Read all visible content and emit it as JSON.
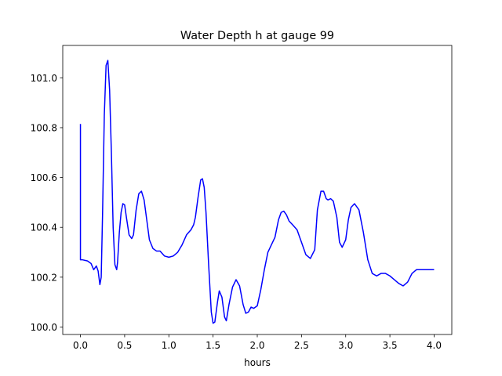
{
  "chart_data": {
    "type": "line",
    "title": "Water Depth h at gauge 99",
    "xlabel": "hours",
    "ylabel": "",
    "xlim": [
      -0.2,
      4.2
    ],
    "ylim": [
      99.97,
      101.13
    ],
    "xticks": [
      0.0,
      0.5,
      1.0,
      1.5,
      2.0,
      2.5,
      3.0,
      3.5,
      4.0
    ],
    "xtick_labels": [
      "0.0",
      "0.5",
      "1.0",
      "1.5",
      "2.0",
      "2.5",
      "3.0",
      "3.5",
      "4.0"
    ],
    "yticks": [
      100.0,
      100.2,
      100.4,
      100.6,
      100.8,
      101.0
    ],
    "ytick_labels": [
      "100.0",
      "100.2",
      "100.4",
      "100.6",
      "100.8",
      "101.0"
    ],
    "grid": false,
    "series": [
      {
        "color": "#0000ff",
        "x": [
          0.0,
          0.0,
          0.02,
          0.08,
          0.12,
          0.15,
          0.18,
          0.2,
          0.22,
          0.235,
          0.25,
          0.27,
          0.29,
          0.31,
          0.33,
          0.35,
          0.37,
          0.39,
          0.41,
          0.42,
          0.44,
          0.46,
          0.48,
          0.5,
          0.52,
          0.55,
          0.58,
          0.6,
          0.63,
          0.66,
          0.69,
          0.72,
          0.75,
          0.78,
          0.82,
          0.86,
          0.9,
          0.95,
          1.0,
          1.05,
          1.1,
          1.15,
          1.2,
          1.25,
          1.28,
          1.3,
          1.33,
          1.36,
          1.38,
          1.4,
          1.42,
          1.45,
          1.48,
          1.5,
          1.52,
          1.55,
          1.57,
          1.6,
          1.63,
          1.65,
          1.68,
          1.72,
          1.76,
          1.8,
          1.84,
          1.87,
          1.9,
          1.93,
          1.96,
          2.0,
          2.04,
          2.08,
          2.12,
          2.16,
          2.2,
          2.24,
          2.27,
          2.3,
          2.33,
          2.36,
          2.4,
          2.45,
          2.5,
          2.55,
          2.6,
          2.65,
          2.68,
          2.72,
          2.75,
          2.78,
          2.8,
          2.83,
          2.86,
          2.9,
          2.93,
          2.96,
          3.0,
          3.03,
          3.06,
          3.1,
          3.15,
          3.2,
          3.25,
          3.3,
          3.35,
          3.4,
          3.45,
          3.5,
          3.55,
          3.6,
          3.65,
          3.7,
          3.75,
          3.8,
          3.85,
          3.9,
          3.95,
          4.0
        ],
        "y": [
          100.815,
          100.27,
          100.27,
          100.265,
          100.255,
          100.23,
          100.245,
          100.225,
          100.17,
          100.2,
          100.45,
          100.85,
          101.05,
          101.07,
          100.95,
          100.7,
          100.4,
          100.25,
          100.23,
          100.26,
          100.38,
          100.46,
          100.495,
          100.49,
          100.44,
          100.37,
          100.355,
          100.37,
          100.47,
          100.535,
          100.545,
          100.51,
          100.43,
          100.35,
          100.315,
          100.305,
          100.305,
          100.285,
          100.28,
          100.285,
          100.3,
          100.33,
          100.37,
          100.39,
          100.41,
          100.44,
          100.52,
          100.59,
          100.595,
          100.56,
          100.46,
          100.25,
          100.06,
          100.015,
          100.02,
          100.1,
          100.145,
          100.12,
          100.04,
          100.025,
          100.09,
          100.16,
          100.19,
          100.165,
          100.09,
          100.055,
          100.06,
          100.08,
          100.075,
          100.085,
          100.15,
          100.23,
          100.3,
          100.33,
          100.36,
          100.43,
          100.46,
          100.465,
          100.45,
          100.425,
          100.41,
          100.39,
          100.34,
          100.29,
          100.275,
          100.31,
          100.47,
          100.545,
          100.545,
          100.515,
          100.51,
          100.515,
          100.505,
          100.44,
          100.34,
          100.32,
          100.35,
          100.43,
          100.48,
          100.495,
          100.47,
          100.38,
          100.27,
          100.215,
          100.205,
          100.215,
          100.215,
          100.205,
          100.19,
          100.175,
          100.165,
          100.18,
          100.215,
          100.23,
          100.23,
          100.23,
          100.23,
          100.23
        ]
      }
    ]
  }
}
